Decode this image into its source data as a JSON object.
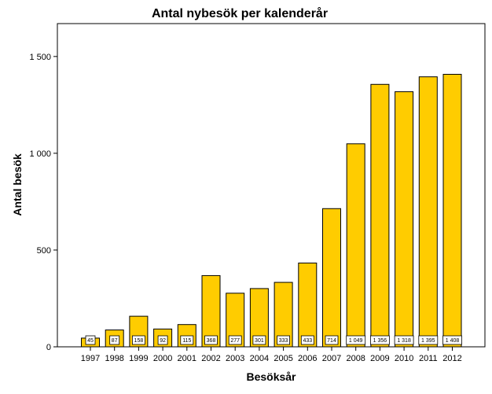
{
  "chart_data": {
    "type": "bar",
    "title": "Antal nybesök per kalenderår",
    "xlabel": "Besöksår",
    "ylabel": "Antal besök",
    "categories": [
      "1997",
      "1998",
      "1999",
      "2000",
      "2001",
      "2002",
      "2003",
      "2004",
      "2005",
      "2006",
      "2007",
      "2008",
      "2009",
      "2010",
      "2011",
      "2012"
    ],
    "values": [
      45,
      87,
      158,
      92,
      115,
      368,
      277,
      301,
      333,
      433,
      714,
      1049,
      1356,
      1318,
      1395,
      1408
    ],
    "data_labels": [
      "45",
      "87",
      "158",
      "92",
      "115",
      "368",
      "277",
      "301",
      "333",
      "433",
      "714",
      "1 049",
      "1 356",
      "1 318",
      "1 395",
      "1 408"
    ],
    "y_ticks": [
      0,
      500,
      1000,
      1500
    ],
    "y_tick_labels": [
      "0",
      "500",
      "1 000",
      "1 500"
    ],
    "ylim": [
      0,
      1670
    ],
    "grid": false,
    "legend": "none",
    "bar_color": "#FFCC00",
    "bar_edge_color": "#000000"
  }
}
